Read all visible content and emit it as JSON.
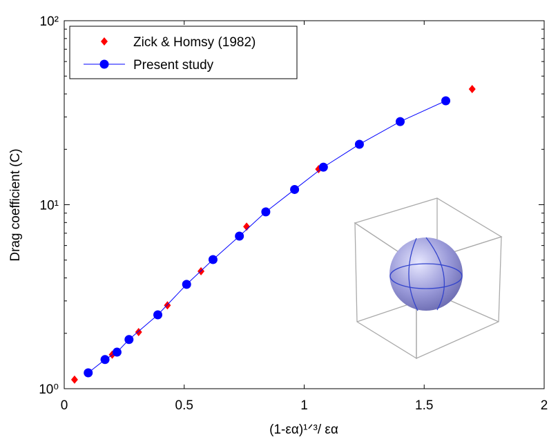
{
  "chart_data": {
    "type": "line",
    "xlabel": "(1-εα)¹ᐟ³/ εα",
    "ylabel": "Drag coefficient (C)",
    "xlim": [
      0,
      2
    ],
    "xticks": [
      0,
      0.5,
      1,
      1.5,
      2
    ],
    "ylim": [
      1,
      100
    ],
    "ylog": true,
    "yticks": [
      {
        "value": 1,
        "label": "10⁰"
      },
      {
        "value": 10,
        "label": "10¹"
      },
      {
        "value": 100,
        "label": "10²"
      }
    ],
    "legend": "upper left",
    "series": [
      {
        "name": "Zick & Homsy (1982)",
        "color": "#ff0000",
        "marker": "diamond",
        "line": false,
        "x": [
          0.043,
          0.2,
          0.31,
          0.43,
          0.57,
          0.76,
          1.06,
          1.7
        ],
        "values": [
          1.12,
          1.53,
          2.03,
          2.84,
          4.35,
          7.6,
          15.6,
          42.5
        ]
      },
      {
        "name": "Present study",
        "color": "#0000ff",
        "marker": "circle",
        "line": true,
        "x": [
          0.1,
          0.17,
          0.22,
          0.27,
          0.39,
          0.51,
          0.62,
          0.73,
          0.84,
          0.96,
          1.08,
          1.23,
          1.4,
          1.59
        ],
        "values": [
          1.22,
          1.44,
          1.58,
          1.85,
          2.52,
          3.69,
          5.03,
          6.75,
          9.14,
          12.1,
          16.0,
          21.3,
          28.3,
          36.7
        ]
      }
    ]
  }
}
